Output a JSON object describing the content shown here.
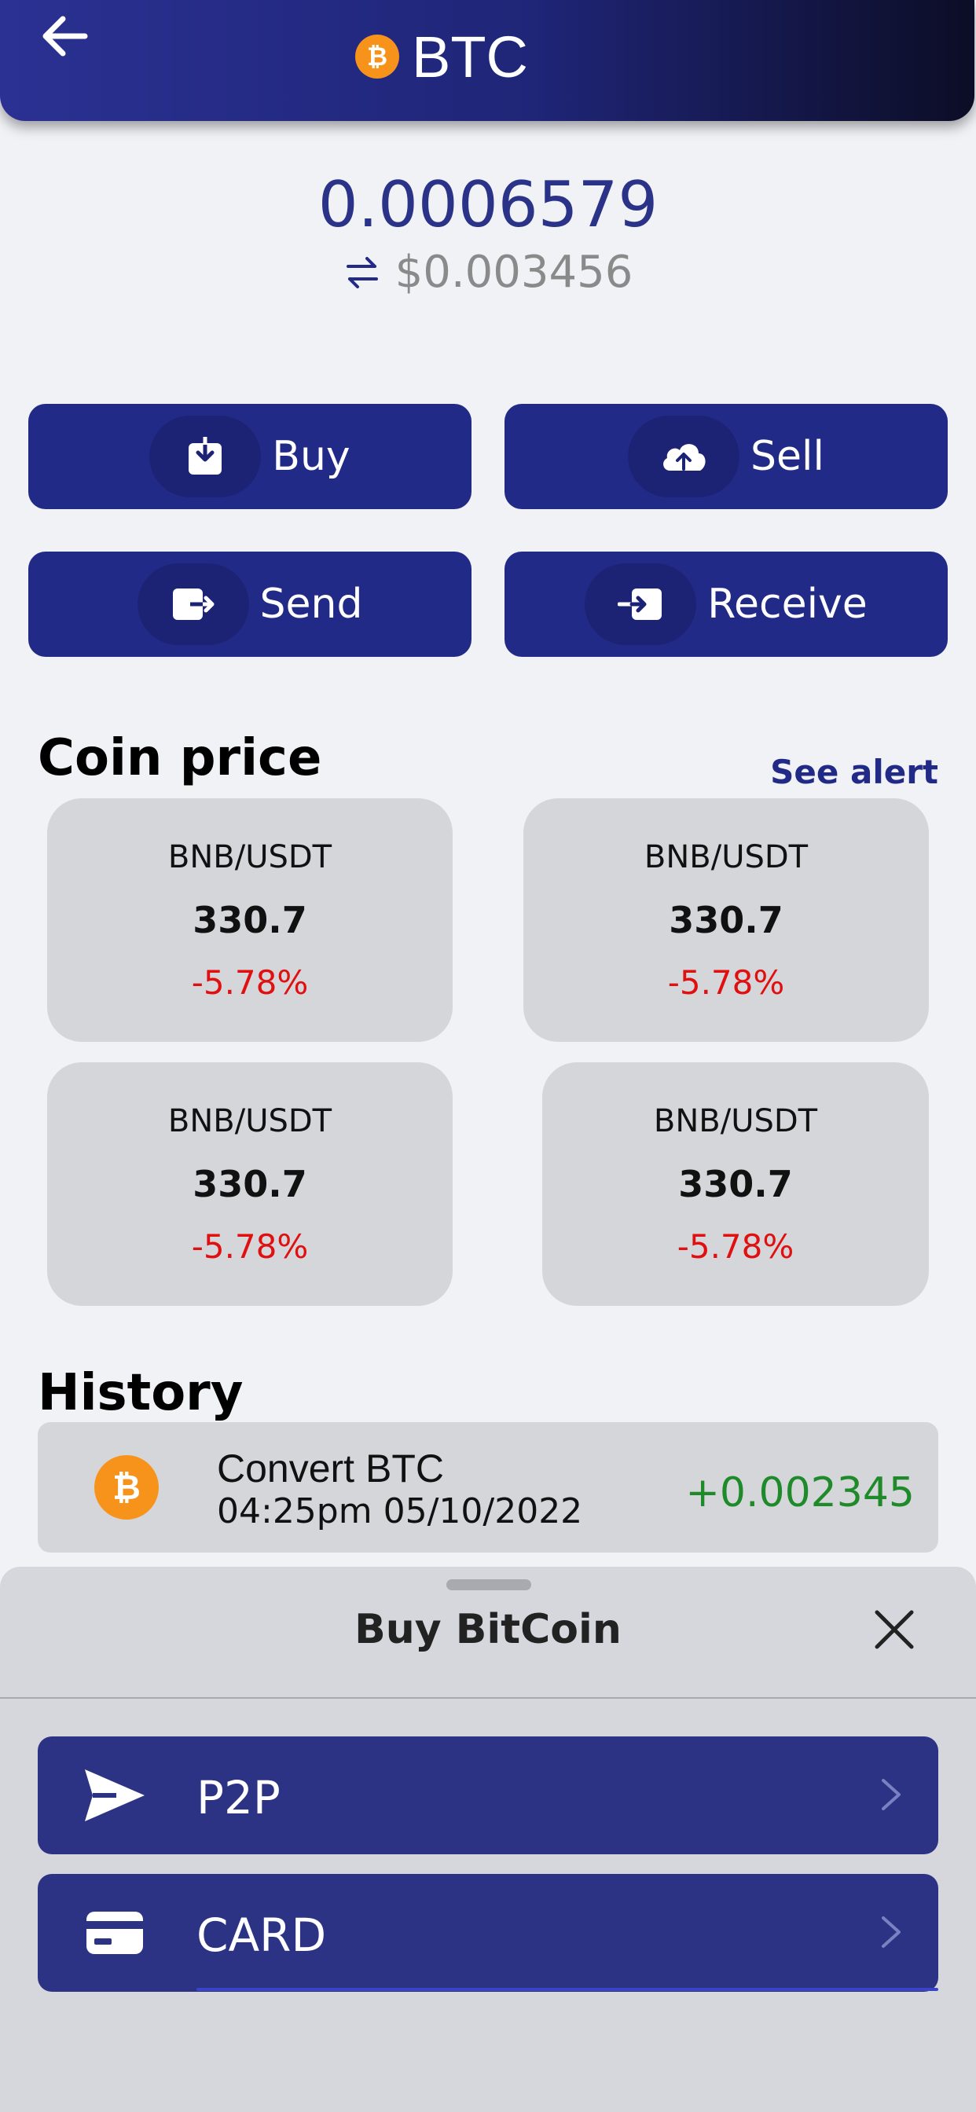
{
  "header": {
    "title": "BTC",
    "back_icon": "arrow-left-icon",
    "coin_icon": "bitcoin-icon"
  },
  "balance": {
    "amount": "0.0006579",
    "fiat": "$0.003456",
    "swap_icon": "swap-arrows-icon"
  },
  "actions": [
    {
      "label": "Buy",
      "icon": "download-icon"
    },
    {
      "label": "Sell",
      "icon": "cloud-upload-icon"
    },
    {
      "label": "Send",
      "icon": "send-out-icon"
    },
    {
      "label": "Receive",
      "icon": "receive-in-icon"
    }
  ],
  "coin_price": {
    "title": "Coin price",
    "see_alert": "See alert",
    "cards": [
      {
        "pair": "BNB/USDT",
        "price": "330.7",
        "change": "-5.78%"
      },
      {
        "pair": "BNB/USDT",
        "price": "330.7",
        "change": "-5.78%"
      },
      {
        "pair": "BNB/USDT",
        "price": "330.7",
        "change": "-5.78%"
      },
      {
        "pair": "BNB/USDT",
        "price": "330.7",
        "change": "-5.78%"
      }
    ]
  },
  "history": {
    "title": "History",
    "items": [
      {
        "title": "Convert BTC",
        "date": "04:25pm 05/10/2022",
        "amount": "+0.002345"
      }
    ]
  },
  "sheet": {
    "title": "Buy BitCoin",
    "close_icon": "close-icon",
    "options": [
      {
        "label": "P2P",
        "icon": "paper-plane-icon"
      },
      {
        "label": "CARD",
        "icon": "credit-card-icon"
      }
    ]
  },
  "colors": {
    "primary": "#222a87",
    "negative": "#e01010",
    "positive": "#1e8a2a",
    "bitcoin": "#f7931a"
  }
}
